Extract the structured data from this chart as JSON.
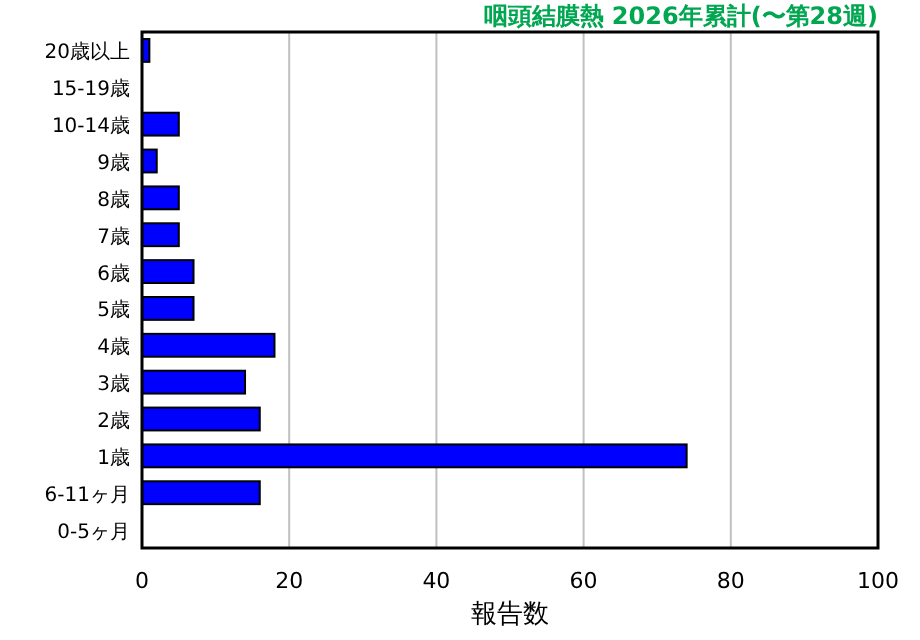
{
  "chart_data": {
    "type": "bar",
    "orientation": "horizontal",
    "title": "咽頭結膜熱 2026年累計(〜第28週)",
    "xlabel": "報告数",
    "categories": [
      "20歳以上",
      "15-19歳",
      "10-14歳",
      "9歳",
      "8歳",
      "7歳",
      "6歳",
      "5歳",
      "4歳",
      "3歳",
      "2歳",
      "1歳",
      "6-11ヶ月",
      "0-5ヶ月"
    ],
    "values": [
      1,
      0,
      5,
      2,
      5,
      5,
      7,
      7,
      18,
      14,
      16,
      74,
      16,
      0
    ],
    "color": "#0000ff",
    "xlim": [
      0,
      100
    ],
    "xticks": [
      0,
      20,
      40,
      60,
      80,
      100
    ],
    "grid": "x"
  }
}
